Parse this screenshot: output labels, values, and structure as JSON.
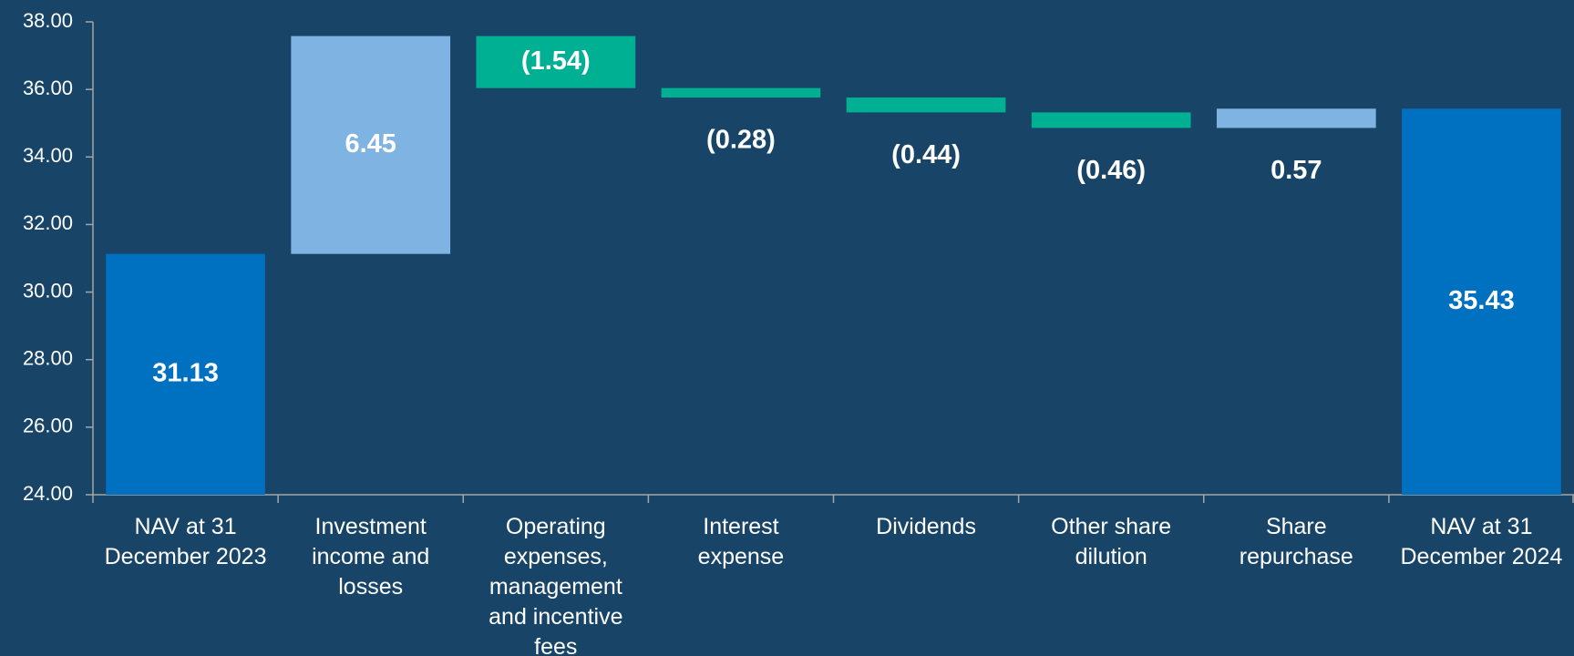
{
  "chart_data": {
    "type": "waterfall",
    "categories": [
      "NAV at 31\nDecember 2023",
      "Investment\nincome and\nlosses",
      "Operating\nexpenses,\nmanagement\nand incentive\nfees",
      "Interest\nexpense",
      "Dividends",
      "Other share\ndilution",
      "Share\nrepurchase",
      "NAV at 31\nDecember 2024"
    ],
    "values": [
      31.13,
      6.45,
      -1.54,
      -0.28,
      -0.44,
      -0.46,
      0.57,
      35.43
    ],
    "value_labels": [
      "31.13",
      "6.45",
      "(1.54)",
      "(0.28)",
      "(0.44)",
      "(0.46)",
      "0.57",
      "35.43"
    ],
    "totals": [
      0,
      7
    ],
    "colors": {
      "total": "#0070c0",
      "increase": "#7fb3e2",
      "decrease": "#00b092"
    },
    "ylim": [
      24,
      38
    ],
    "yticks": [
      {
        "value": 24,
        "label": "24.00"
      },
      {
        "value": 26,
        "label": "26.00"
      },
      {
        "value": 28,
        "label": "28.00"
      },
      {
        "value": 30,
        "label": "30.00"
      },
      {
        "value": 32,
        "label": "32.00"
      },
      {
        "value": 34,
        "label": "34.00"
      },
      {
        "value": 36,
        "label": "36.00"
      },
      {
        "value": 38,
        "label": "38.00"
      }
    ]
  }
}
